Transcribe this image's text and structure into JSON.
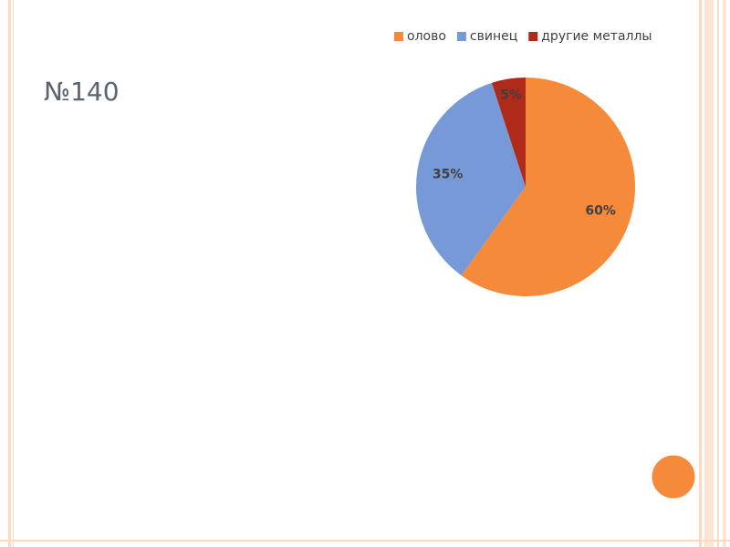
{
  "slide": {
    "title": "№140"
  },
  "chart_data": {
    "type": "pie",
    "categories": [
      "олово",
      "свинец",
      "другие металлы"
    ],
    "values": [
      60,
      35,
      5
    ],
    "value_labels": [
      "60%",
      "35%",
      "5%"
    ],
    "colors": [
      "#f68a3b",
      "#7899d8",
      "#b02a1a"
    ],
    "legend": "top"
  }
}
